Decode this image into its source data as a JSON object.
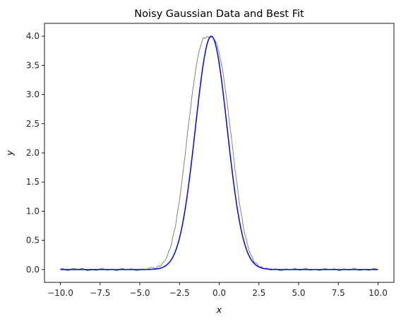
{
  "chart_data": {
    "type": "line",
    "title": "Noisy Gaussian Data and Best Fit",
    "xlabel": "x",
    "ylabel": "y",
    "xlim": [
      -11.0,
      11.0
    ],
    "ylim": [
      -0.22,
      4.22
    ],
    "x_ticks": [
      -10.0,
      -7.5,
      -5.0,
      -2.5,
      0.0,
      2.5,
      5.0,
      7.5,
      10.0
    ],
    "x_tick_labels": [
      "−10.0",
      "−7.5",
      "−5.0",
      "−2.5",
      "0.0",
      "2.5",
      "5.0",
      "7.5",
      "10.0"
    ],
    "y_ticks": [
      0.0,
      0.5,
      1.0,
      1.5,
      2.0,
      2.5,
      3.0,
      3.5,
      4.0
    ],
    "y_tick_labels": [
      "0.0",
      "0.5",
      "1.0",
      "1.5",
      "2.0",
      "2.5",
      "3.0",
      "3.5",
      "4.0"
    ],
    "grid": false,
    "legend": "none",
    "series": [
      {
        "role": "noisy data",
        "color": "#808080",
        "x": [
          -10.0,
          -9.5,
          -9.0,
          -8.5,
          -8.0,
          -7.5,
          -7.0,
          -6.5,
          -6.0,
          -5.5,
          -5.0,
          -4.5,
          -4.0,
          -3.75,
          -3.5,
          -3.25,
          -3.0,
          -2.75,
          -2.5,
          -2.25,
          -2.0,
          -1.75,
          -1.5,
          -1.25,
          -1.0,
          -0.75,
          -0.5,
          -0.25,
          0.0,
          0.25,
          0.5,
          0.75,
          1.0,
          1.25,
          1.5,
          1.75,
          2.0,
          2.25,
          2.5,
          2.75,
          3.0,
          3.5,
          4.0,
          4.5,
          5.0,
          5.5,
          6.0,
          6.5,
          7.0,
          7.5,
          8.0,
          8.5,
          9.0,
          9.5,
          10.0
        ],
        "y": [
          0.01,
          -0.01,
          0.02,
          0.0,
          -0.02,
          0.01,
          0.0,
          -0.01,
          0.01,
          0.0,
          -0.01,
          0.02,
          0.03,
          0.06,
          0.12,
          0.24,
          0.45,
          0.76,
          1.19,
          1.72,
          2.32,
          2.89,
          3.4,
          3.77,
          3.97,
          3.98,
          3.99,
          3.94,
          3.72,
          3.36,
          2.86,
          2.3,
          1.71,
          1.19,
          0.76,
          0.45,
          0.24,
          0.12,
          0.06,
          0.03,
          0.01,
          0.0,
          -0.01,
          0.01,
          0.0,
          0.01,
          -0.01,
          0.0,
          0.01,
          -0.01,
          0.0,
          0.01,
          -0.01,
          0.0,
          0.01
        ]
      },
      {
        "role": "best fit",
        "color": "#0000ff",
        "model": "gaussian",
        "amplitude": 4.0,
        "center": -0.5,
        "sigma": 1.0,
        "offset": 0.0
      }
    ]
  }
}
